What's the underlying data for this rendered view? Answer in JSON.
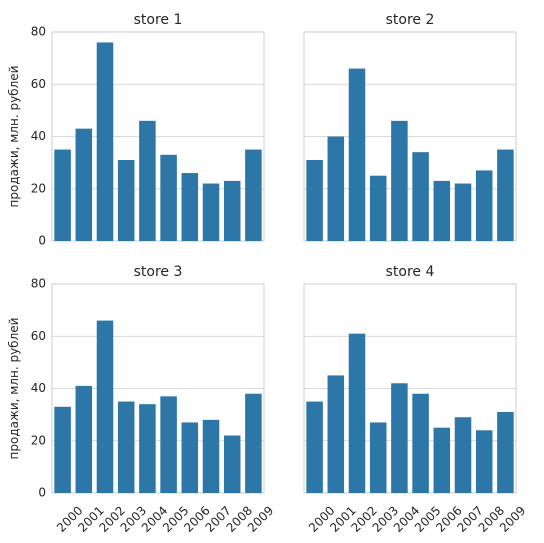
{
  "figure": {
    "ylabel": "продажи, млн. рублей"
  },
  "chart_data": [
    {
      "type": "bar",
      "title": "store 1",
      "categories": [
        "2000",
        "2001",
        "2002",
        "2003",
        "2004",
        "2005",
        "2006",
        "2007",
        "2008",
        "2009"
      ],
      "values": [
        35,
        43,
        76,
        31,
        46,
        33,
        26,
        22,
        23,
        35
      ],
      "ylabel": "продажи, млн. рублей",
      "ylim": [
        0,
        80
      ],
      "yticks": [
        0,
        20,
        40,
        60,
        80
      ],
      "grid": true
    },
    {
      "type": "bar",
      "title": "store 2",
      "categories": [
        "2000",
        "2001",
        "2002",
        "2003",
        "2004",
        "2005",
        "2006",
        "2007",
        "2008",
        "2009"
      ],
      "values": [
        31,
        40,
        66,
        25,
        46,
        34,
        23,
        22,
        27,
        35
      ],
      "ylim": [
        0,
        80
      ],
      "grid": true
    },
    {
      "type": "bar",
      "title": "store 3",
      "categories": [
        "2000",
        "2001",
        "2002",
        "2003",
        "2004",
        "2005",
        "2006",
        "2007",
        "2008",
        "2009"
      ],
      "values": [
        33,
        41,
        66,
        35,
        34,
        37,
        27,
        28,
        22,
        38
      ],
      "ylabel": "продажи, млн. рублей",
      "ylim": [
        0,
        80
      ],
      "yticks": [
        0,
        20,
        40,
        60,
        80
      ],
      "grid": true
    },
    {
      "type": "bar",
      "title": "store 4",
      "categories": [
        "2000",
        "2001",
        "2002",
        "2003",
        "2004",
        "2005",
        "2006",
        "2007",
        "2008",
        "2009"
      ],
      "values": [
        35,
        45,
        61,
        27,
        42,
        38,
        25,
        29,
        24,
        31
      ],
      "ylim": [
        0,
        80
      ],
      "grid": true
    }
  ]
}
